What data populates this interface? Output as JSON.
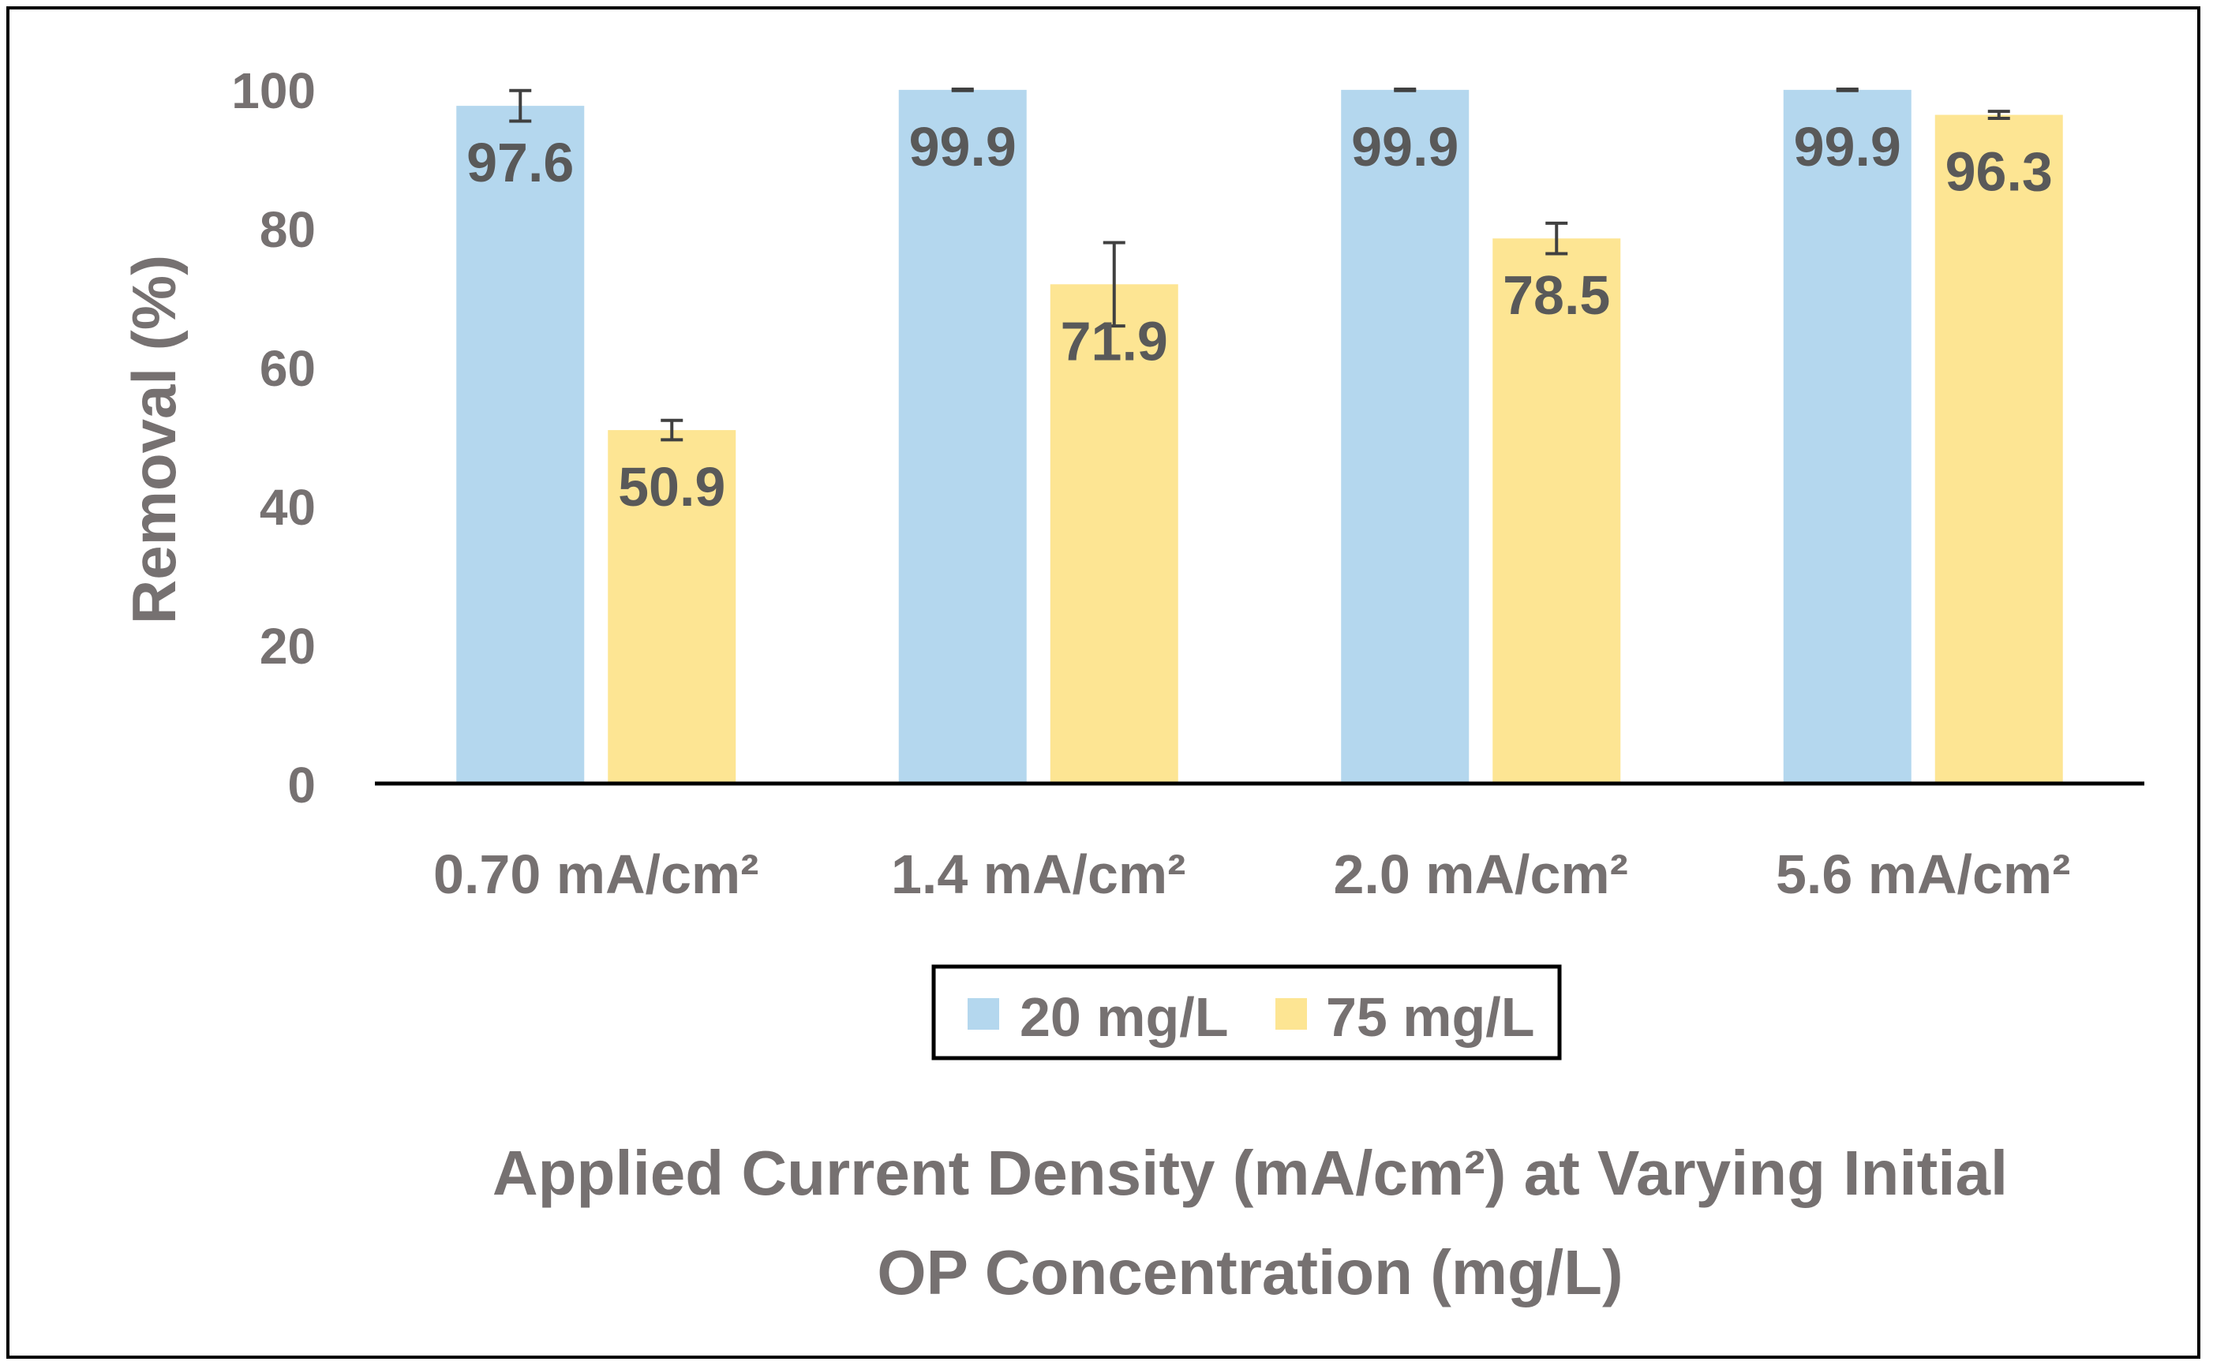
{
  "chart_data": {
    "type": "bar",
    "title": "",
    "categories": [
      "0.70 mA/cm²",
      "1.4 mA/cm²",
      "2.0 mA/cm²",
      "5.6 mA/cm²"
    ],
    "series": [
      {
        "name": "20 mg/L",
        "color": "#b4d7ee",
        "values": [
          97.6,
          99.9,
          99.9,
          99.9
        ],
        "labels": [
          "97.6",
          "99.9",
          "99.9",
          "99.9"
        ],
        "error": [
          2.2,
          0.1,
          0.1,
          0.1
        ]
      },
      {
        "name": "75 mg/L",
        "color": "#fde593",
        "values": [
          50.9,
          71.9,
          78.5,
          96.3
        ],
        "labels": [
          "50.9",
          "71.9",
          "78.5",
          "96.3"
        ],
        "error": [
          1.4,
          6.0,
          2.2,
          0.5
        ]
      }
    ],
    "xlabel_lines": [
      "Applied Current Density (mA/cm²) at Varying Initial",
      "OP Concentration (mg/L)"
    ],
    "ylabel": "Removal (%)",
    "ylim": [
      0,
      100
    ],
    "yticks": [
      "0",
      "20",
      "40",
      "60",
      "80",
      "100"
    ],
    "grid": false,
    "legend_position": "bottom-center"
  }
}
